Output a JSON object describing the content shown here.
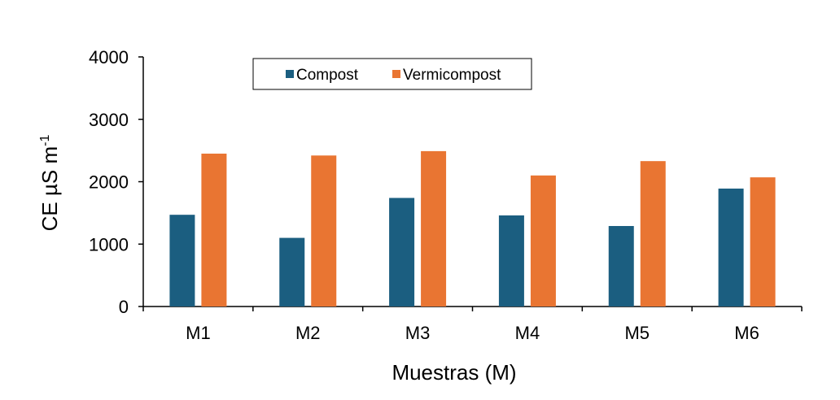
{
  "chart_data": {
    "type": "bar",
    "categories": [
      "M1",
      "M2",
      "M3",
      "M4",
      "M5",
      "M6"
    ],
    "series": [
      {
        "name": "Compost",
        "values": [
          1470,
          1100,
          1740,
          1460,
          1290,
          1890
        ],
        "color": "#1b5e80"
      },
      {
        "name": "Vermicompost",
        "values": [
          2450,
          2420,
          2490,
          2100,
          2330,
          2070
        ],
        "color": "#e97532"
      }
    ],
    "title": "",
    "xlabel": "Muestras (M)",
    "ylabel": {
      "base": "CE µS m",
      "superscript": "-1"
    },
    "ylim": [
      0,
      4000
    ],
    "yticks": [
      "0",
      "1000",
      "2000",
      "3000",
      "4000"
    ],
    "grid": false,
    "legend_position": "top"
  }
}
